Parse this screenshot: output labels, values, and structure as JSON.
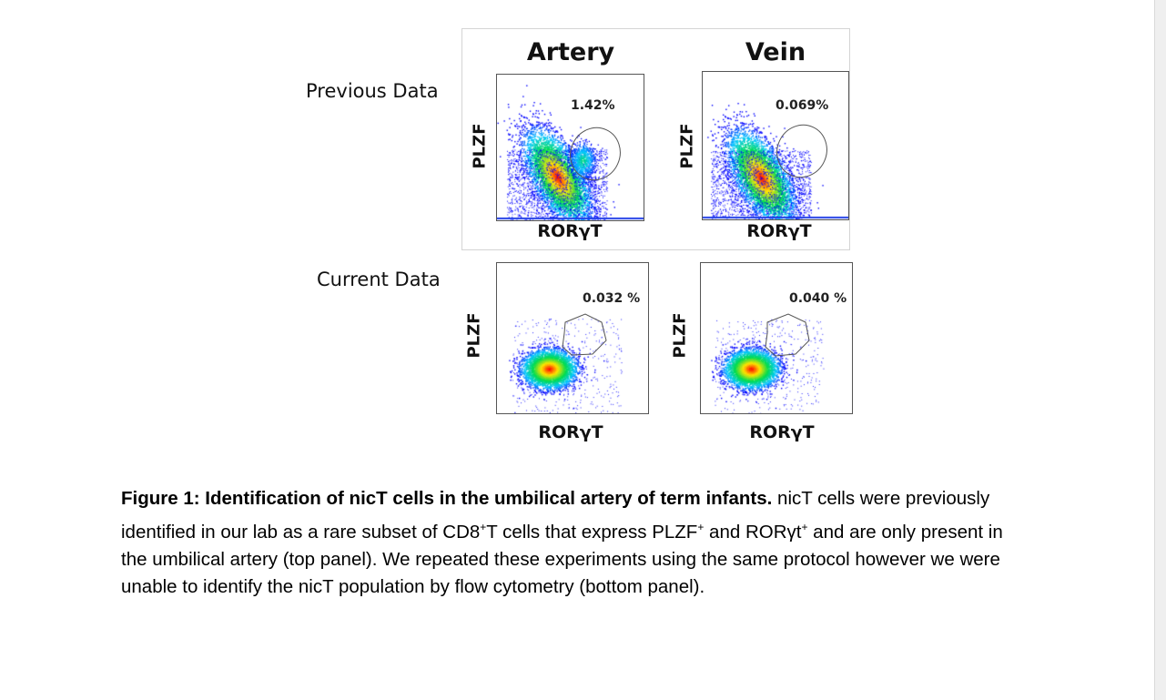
{
  "figure": {
    "row_labels": {
      "previous": "Previous Data",
      "current": "Current Data"
    },
    "column_titles": {
      "artery": "Artery",
      "vein": "Vein"
    },
    "panels": [
      {
        "id": "prev-artery",
        "y_axis": "PLZF",
        "x_axis": "RORγT",
        "gate_percent": "1.42%",
        "has_subpopulation": true
      },
      {
        "id": "prev-vein",
        "y_axis": "PLZF",
        "x_axis": "RORγT",
        "gate_percent": "0.069%",
        "has_subpopulation": false
      },
      {
        "id": "curr-artery",
        "y_axis": "PLZF",
        "x_axis": "RORγT",
        "gate_percent": "0.032 %",
        "has_subpopulation": false
      },
      {
        "id": "curr-vein",
        "y_axis": "PLZF",
        "x_axis": "RORγT",
        "gate_percent": "0.040 %",
        "has_subpopulation": false
      }
    ]
  },
  "caption": {
    "title": "Figure 1: Identification of nicT cells in the umbilical artery of term infants.",
    "body_part1": " nicT cells were previously identified in our lab as a rare subset of CD8",
    "sup1": "+",
    "body_part2": "T cells that express PLZF",
    "sup2": "+",
    "body_part3": " and RORγt",
    "sup3": "+",
    "body_part4": " and are only present in the umbilical artery (top panel). We repeated these experiments using the same protocol however we were unable to identify the nicT population by flow cytometry (bottom panel)."
  }
}
